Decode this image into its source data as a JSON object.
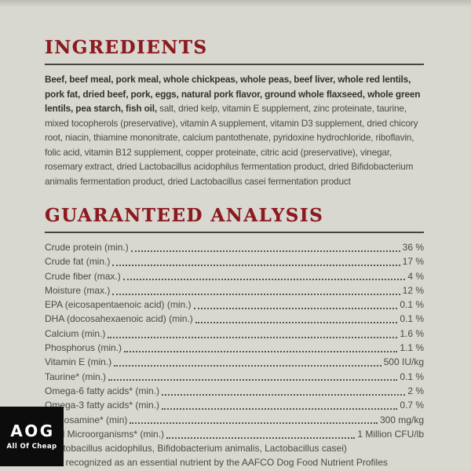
{
  "page": {
    "background_color": "#d8d7d0",
    "accent_color": "#8c1a1f"
  },
  "ingredients": {
    "title": "INGREDIENTS",
    "bold_text": "Beef, beef meal, pork meal, whole chickpeas, whole peas, beef liver, whole red lentils, pork fat, dried beef, pork, eggs, natural pork flavor, ground whole flaxseed, whole green lentils, pea starch, fish oil,",
    "regular_text": " salt, dried kelp, vitamin E supplement, zinc proteinate, taurine, mixed tocopherols (preservative), vitamin A supplement, vitamin D3 supplement, dried chicory root, niacin, thiamine mononitrate, calcium pantothenate, pyridoxine hydrochloride, riboflavin, folic acid, vitamin B12 supplement, copper proteinate, citric acid (preservative), vinegar, rosemary extract, dried Lactobacillus acidophilus fermentation product, dried Bifidobacterium animalis fermentation product, dried Lactobacillus casei fermentation product"
  },
  "analysis": {
    "title": "GUARANTEED ANALYSIS",
    "rows": [
      {
        "label": "Crude protein (min.)",
        "value": "36 %"
      },
      {
        "label": "Crude fat (min.)",
        "value": "17 %"
      },
      {
        "label": "Crude fiber (max.)",
        "value": "4 %"
      },
      {
        "label": "Moisture (max.)",
        "value": "12 %"
      },
      {
        "label": "EPA (eicosapentaenoic acid) (min.)",
        "value": "0.1 %"
      },
      {
        "label": "DHA (docosahexaenoic acid) (min.)",
        "value": "0.1 %"
      },
      {
        "label": "Calcium (min.)",
        "value": "1.6 %"
      },
      {
        "label": "Phosphorus (min.)",
        "value": "1.1 %"
      },
      {
        "label": "Vitamin E (min.)",
        "value": "500 IU/kg"
      },
      {
        "label": "Taurine* (min.)",
        "value": "0.1 %"
      },
      {
        "label": "Omega-6 fatty acids* (min.)",
        "value": "2 %"
      },
      {
        "label": "Omega-3 fatty acids* (min.)",
        "value": "0.7 %"
      },
      {
        "label": "Glucosamine* (min)",
        "value": "300 mg/kg"
      },
      {
        "label": "Total Microorganisms* (min.)",
        "value": "1 Million CFU/lb"
      }
    ],
    "footnotes": [
      "(Lactobacillus acidophilus, Bifidobacterium animalis, Lactobacillus casei)",
      "*Not recognized as an essential nutrient by the AAFCO Dog Food Nutrient Profiles"
    ]
  },
  "logo": {
    "abbr": "AOG",
    "tagline": "All Of Cheap"
  }
}
